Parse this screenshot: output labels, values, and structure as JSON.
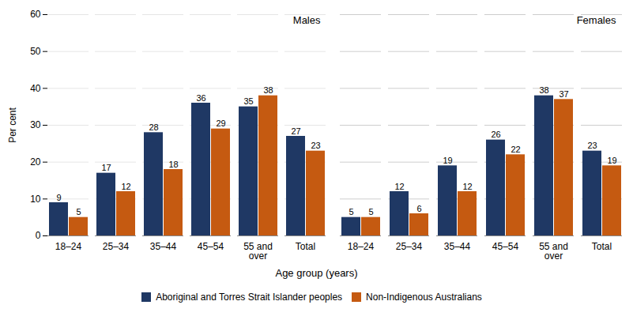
{
  "chart_data": [
    {
      "type": "bar",
      "title": "Males",
      "ylabel": "Per cent",
      "xlabel": "Age group (years)",
      "categories": [
        "18–24",
        "25–34",
        "35–44",
        "45–54",
        "55 and\nover",
        "Total"
      ],
      "series": [
        {
          "name": "Aboriginal and Torres Strait Islander peoples",
          "color": "#1F3864",
          "values": [
            9,
            17,
            28,
            36,
            35,
            27
          ]
        },
        {
          "name": "Non-Indigenous Australians",
          "color": "#C55A11",
          "values": [
            5,
            12,
            18,
            29,
            38,
            23
          ]
        }
      ],
      "ylim": [
        0,
        60
      ],
      "yticks": [
        0,
        10,
        20,
        30,
        40,
        50,
        60
      ],
      "grid": true,
      "data_labels": true,
      "legend": "bottom"
    },
    {
      "type": "bar",
      "title": "Females",
      "categories": [
        "18–24",
        "25–34",
        "35–44",
        "45–54",
        "55 and\nover",
        "Total"
      ],
      "series": [
        {
          "name": "Aboriginal and Torres Strait Islander peoples",
          "color": "#1F3864",
          "values": [
            5,
            12,
            19,
            26,
            38,
            23
          ]
        },
        {
          "name": "Non-Indigenous Australians",
          "color": "#C55A11",
          "values": [
            5,
            6,
            12,
            22,
            37,
            19
          ]
        }
      ],
      "ylim": [
        0,
        60
      ],
      "yticks": [
        0,
        10,
        20,
        30,
        40,
        50,
        60
      ],
      "grid": true,
      "data_labels": true,
      "legend": "bottom",
      "tick_labels": "x"
    }
  ]
}
